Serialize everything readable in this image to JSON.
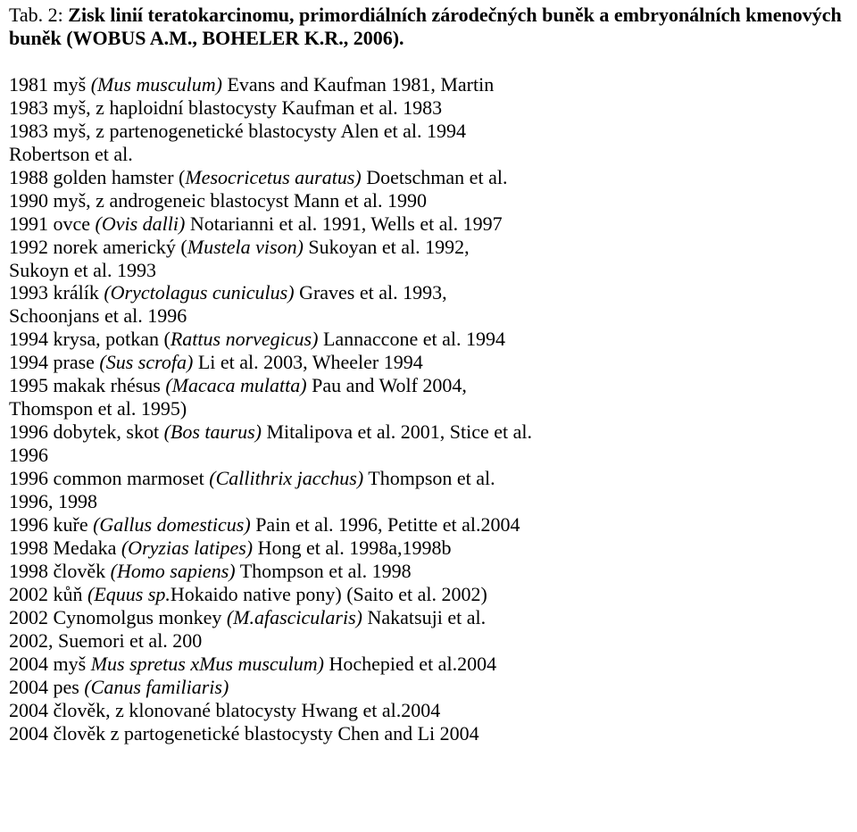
{
  "title_lead": "Tab. 2: ",
  "title_bold": "Zisk linií teratokarcinomu, primordiálních zárodečných buněk a embryonálních kmenových buněk (WOBUS A.M., BOHELER K.R., 2006).",
  "lines": [
    {
      "pre": "1981 myš ",
      "it": "(Mus musculum)",
      "post": " Evans and Kaufman 1981, Martin"
    },
    {
      "pre": "1983 myš, z haploidní blastocysty Kaufman et al. 1983",
      "it": "",
      "post": ""
    },
    {
      "pre": "1983 myš, z partenogenetické blastocysty Alen et al. 1994",
      "it": "",
      "post": ""
    },
    {
      "pre": "Robertson et al.",
      "it": "",
      "post": ""
    },
    {
      "pre": "1988 golden hamster (",
      "it": "Mesocricetus auratus)",
      "post": " Doetschman et al."
    },
    {
      "pre": "1990 myš, z androgeneic blastocyst Mann et al. 1990",
      "it": "",
      "post": ""
    },
    {
      "pre": "1991 ovce ",
      "it": "(Ovis dalli)",
      "post": " Notarianni et al. 1991, Wells et al. 1997"
    },
    {
      "pre": "1992 norek americký (",
      "it": "Mustela vison)",
      "post": " Sukoyan et al. 1992,"
    },
    {
      "pre": "Sukoyn et al. 1993",
      "it": "",
      "post": ""
    },
    {
      "pre": "1993 králík ",
      "it": "(Oryctolagus cuniculus)",
      "post": " Graves et al. 1993,"
    },
    {
      "pre": "Schoonjans et al. 1996",
      "it": "",
      "post": ""
    },
    {
      "pre": "1994 krysa, potkan (",
      "it": "Rattus norvegicus)",
      "post": " Lannaccone et al. 1994"
    },
    {
      "pre": "1994 prase ",
      "it": "(Sus scrofa)",
      "post": " Li et al. 2003, Wheeler 1994"
    },
    {
      "pre": "1995 makak rhésus ",
      "it": "(Macaca mulatta)",
      "post": " Pau and Wolf 2004,"
    },
    {
      "pre": "Thomspon et al. 1995)",
      "it": "",
      "post": ""
    },
    {
      "pre": "1996 dobytek, skot ",
      "it": "(Bos taurus)",
      "post": " Mitalipova et al. 2001, Stice et al."
    },
    {
      "pre": "1996",
      "it": "",
      "post": ""
    },
    {
      "pre": "1996 common marmoset ",
      "it": "(Callithrix jacchus)",
      "post": " Thompson et al."
    },
    {
      "pre": "1996, 1998",
      "it": "",
      "post": ""
    },
    {
      "pre": "1996 kuře ",
      "it": "(Gallus domesticus)",
      "post": " Pain et al. 1996, Petitte et al.2004"
    },
    {
      "pre": "1998 Medaka ",
      "it": "(Oryzias latipes)",
      "post": " Hong et al. 1998a,1998b"
    },
    {
      "pre": "1998 člověk ",
      "it": "(Homo sapiens)",
      "post": " Thompson et al. 1998"
    },
    {
      "pre": "2002 kůň ",
      "it": "(Equus sp.",
      "post": "Hokaido native pony) (Saito et al. 2002)"
    },
    {
      "pre": "2002 Cynomolgus monkey ",
      "it": "(M.afascicularis)",
      "post": " Nakatsuji et al."
    },
    {
      "pre": "2002, Suemori et al. 200",
      "it": "",
      "post": ""
    },
    {
      "pre": "2004 myš ",
      "it": "Mus spretus xMus musculum)",
      "post": " Hochepied et al.2004"
    },
    {
      "pre": "2004 pes ",
      "it": "(Canus familiaris)",
      "post": ""
    },
    {
      "pre": "2004 člověk, z klonované blatocysty Hwang et al.2004",
      "it": "",
      "post": ""
    },
    {
      "pre": "2004 člověk z partogenetické blastocysty Chen and Li 2004",
      "it": "",
      "post": ""
    }
  ]
}
